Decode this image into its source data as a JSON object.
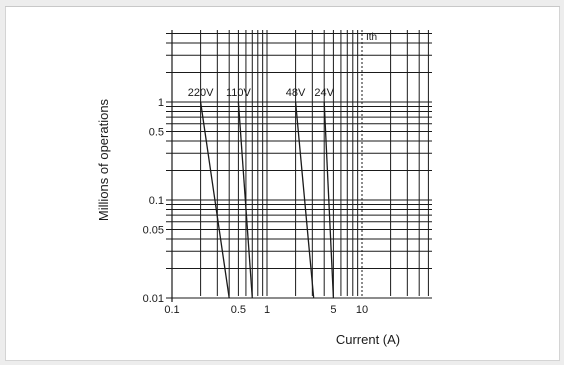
{
  "chart_data": {
    "type": "line",
    "title": "",
    "xlabel": "Current (A)",
    "ylabel": "Millions of operations",
    "x_scale": "log",
    "y_scale": "log",
    "xlim": [
      0.1,
      50
    ],
    "ylim": [
      0.01,
      5
    ],
    "grid": true,
    "x_tick_labels": [
      "0.1",
      "0.5",
      "1",
      "5",
      "10"
    ],
    "x_tick_values": [
      0.1,
      0.5,
      1,
      5,
      10
    ],
    "y_tick_labels": [
      "0.01",
      "0.05",
      "0.1",
      "0.5",
      "1"
    ],
    "y_tick_values": [
      0.01,
      0.05,
      0.1,
      0.5,
      1
    ],
    "annotations": [
      {
        "text": "Ith",
        "x": 10
      }
    ],
    "series": [
      {
        "name": "220V",
        "points": [
          [
            0.2,
            1
          ],
          [
            0.4,
            0.01
          ]
        ]
      },
      {
        "name": "110V",
        "points": [
          [
            0.5,
            1
          ],
          [
            0.7,
            0.01
          ]
        ]
      },
      {
        "name": "48V",
        "points": [
          [
            2,
            1
          ],
          [
            3.1,
            0.01
          ]
        ]
      },
      {
        "name": "24V",
        "points": [
          [
            4,
            1
          ],
          [
            5,
            0.01
          ]
        ]
      }
    ],
    "colors": {
      "lines": "#1a1a1a",
      "grid": "#1a1a1a",
      "background": "#ffffff"
    }
  }
}
